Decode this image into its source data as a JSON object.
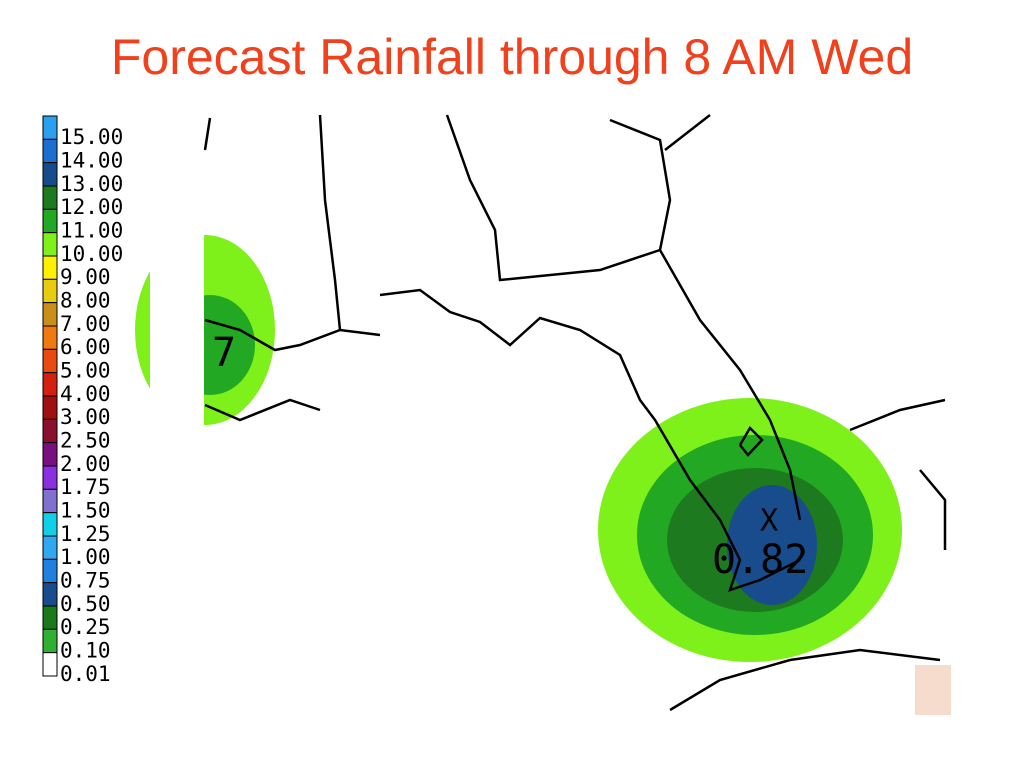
{
  "header": {
    "title": "Forecast Rainfall through 8 AM Wed"
  },
  "legend": [
    {
      "label": "15.00",
      "color": "#2aa0f0"
    },
    {
      "label": "14.00",
      "color": "#1a6fd0"
    },
    {
      "label": "13.00",
      "color": "#174c8c"
    },
    {
      "label": "12.00",
      "color": "#1e7a1e"
    },
    {
      "label": "11.00",
      "color": "#22a822"
    },
    {
      "label": "10.00",
      "color": "#7ef01a"
    },
    {
      "label": "9.00",
      "color": "#fff000"
    },
    {
      "label": "8.00",
      "color": "#e8cc10"
    },
    {
      "label": "7.00",
      "color": "#c89018"
    },
    {
      "label": "6.00",
      "color": "#f07a10"
    },
    {
      "label": "5.00",
      "color": "#e84a10"
    },
    {
      "label": "4.00",
      "color": "#d42010"
    },
    {
      "label": "3.00",
      "color": "#a01010"
    },
    {
      "label": "2.50",
      "color": "#8a1030"
    },
    {
      "label": "2.00",
      "color": "#7a1080"
    },
    {
      "label": "1.75",
      "color": "#8a30e0"
    },
    {
      "label": "1.50",
      "color": "#8070d0"
    },
    {
      "label": "1.25",
      "color": "#10d0e8"
    },
    {
      "label": "1.00",
      "color": "#30a8f0"
    },
    {
      "label": "0.75",
      "color": "#2080e0"
    },
    {
      "label": "0.50",
      "color": "#184c8c"
    },
    {
      "label": "0.25",
      "color": "#1a7a1a"
    },
    {
      "label": "0.10",
      "color": "#30b030"
    },
    {
      "label": "0.01",
      "color": "#ffffff"
    }
  ],
  "map": {
    "labels": {
      "west": "7",
      "max_value": "0.82",
      "center": "X"
    }
  }
}
